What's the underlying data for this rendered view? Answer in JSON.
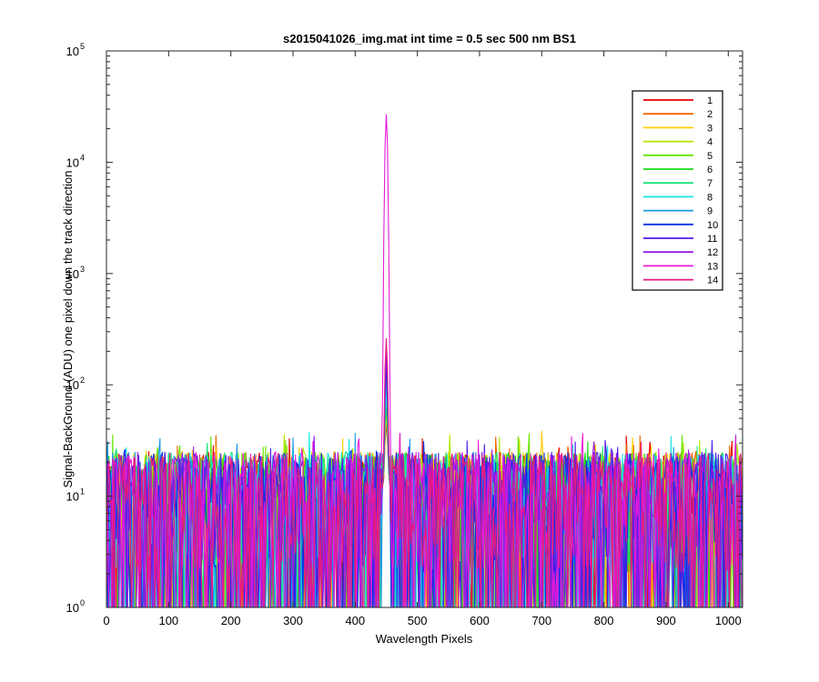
{
  "chart_data": {
    "type": "line",
    "title": "s2015041026_img.mat int time = 0.5 sec  500 nm BS1",
    "xlabel": "Wavelength Pixels",
    "ylabel": "Signal-BackGround (ADU) one pixel down the track direction",
    "xlim": [
      0,
      1023
    ],
    "ylim": [
      1,
      100000
    ],
    "yscale": "log",
    "grid": false,
    "legend_position": "top-right",
    "x_ticks": [
      "0",
      "100",
      "200",
      "300",
      "400",
      "500",
      "600",
      "700",
      "800",
      "900",
      "1000"
    ],
    "x_tick_values": [
      0,
      100,
      200,
      300,
      400,
      500,
      600,
      700,
      800,
      900,
      1000
    ],
    "y_ticks": [
      {
        "base": "10",
        "exp": "0",
        "value": 1
      },
      {
        "base": "10",
        "exp": "1",
        "value": 10
      },
      {
        "base": "10",
        "exp": "2",
        "value": 100
      },
      {
        "base": "10",
        "exp": "3",
        "value": 1000
      },
      {
        "base": "10",
        "exp": "4",
        "value": 10000
      },
      {
        "base": "10",
        "exp": "5",
        "value": 100000
      }
    ],
    "noise_floor_typical": [
      1,
      40
    ],
    "peak": {
      "x": 450,
      "y": 27000
    },
    "series": [
      {
        "name": "1",
        "color": "#e60000",
        "peak": 35
      },
      {
        "name": "2",
        "color": "#f26600",
        "peak": 40
      },
      {
        "name": "3",
        "color": "#ffcc00",
        "peak": 45
      },
      {
        "name": "4",
        "color": "#b3e600",
        "peak": 50
      },
      {
        "name": "5",
        "color": "#66e600",
        "peak": 55
      },
      {
        "name": "6",
        "color": "#1ad91a",
        "peak": 60
      },
      {
        "name": "7",
        "color": "#1ae680",
        "peak": 70
      },
      {
        "name": "8",
        "color": "#1ae6e6",
        "peak": 80
      },
      {
        "name": "9",
        "color": "#1a99e6",
        "peak": 100
      },
      {
        "name": "10",
        "color": "#0033e6",
        "peak": 130
      },
      {
        "name": "11",
        "color": "#4d1ae6",
        "peak": 160
      },
      {
        "name": "12",
        "color": "#991ae6",
        "peak": 190
      },
      {
        "name": "13",
        "color": "#e61ad9",
        "peak": 27000
      },
      {
        "name": "14",
        "color": "#e61a80",
        "peak": 250
      }
    ]
  }
}
